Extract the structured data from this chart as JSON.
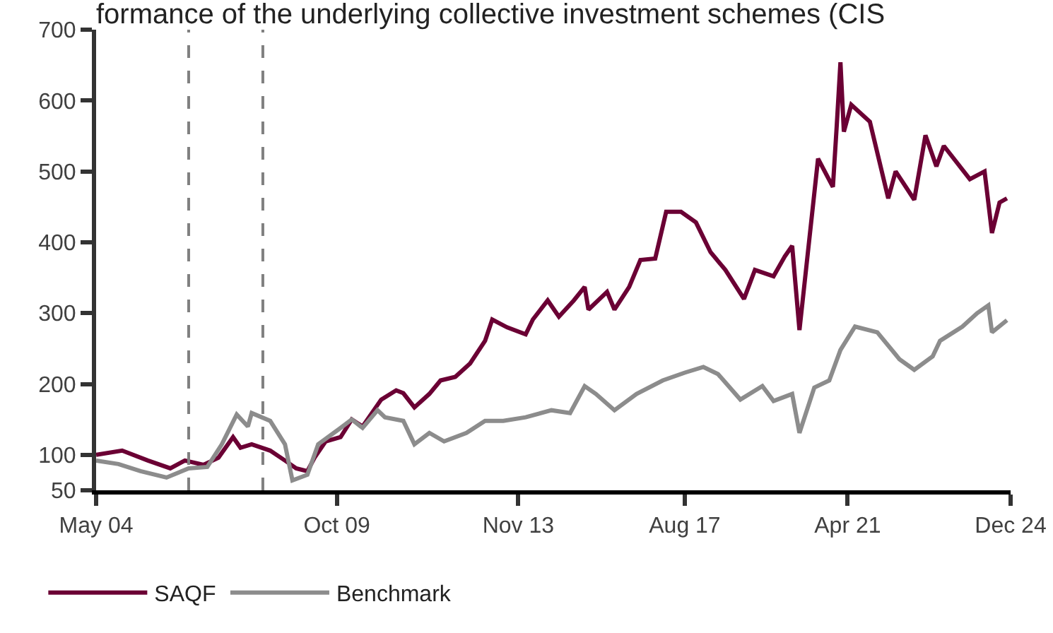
{
  "chart_data": {
    "type": "line",
    "title": "formance of the underlying collective investment schemes (CIS",
    "xlim": [
      "2004-05",
      "2024-12"
    ],
    "xticks": [
      {
        "value": "2004-05",
        "label": "May 04"
      },
      {
        "value": "2009-10",
        "label": "Oct 09"
      },
      {
        "value": "2013-11",
        "label": "Nov 13"
      },
      {
        "value": "2017-08",
        "label": "Aug 17"
      },
      {
        "value": "2021-04",
        "label": "Apr 21"
      },
      {
        "value": "2024-12",
        "label": "Dec 24"
      }
    ],
    "ylim": [
      50,
      700
    ],
    "yticks": [
      50,
      100,
      200,
      300,
      400,
      500,
      600,
      700
    ],
    "grid": false,
    "legend": "bottom",
    "line_style": "solid",
    "marker": "none",
    "ref_lines": [
      {
        "axis": "x",
        "value": "2006-06",
        "color": "#808080",
        "line_style": "dashed"
      },
      {
        "axis": "x",
        "value": "2008-02",
        "color": "#808080",
        "line_style": "dashed"
      }
    ],
    "series": [
      {
        "name": "SAQF",
        "color": "#6b0034",
        "x": [
          "2004-05",
          "2004-12",
          "2005-07",
          "2006-01",
          "2006-05",
          "2006-10",
          "2007-02",
          "2007-06",
          "2007-08",
          "2007-11",
          "2008-04",
          "2008-08",
          "2008-11",
          "2009-02",
          "2009-04",
          "2009-07",
          "2009-11",
          "2010-02",
          "2010-05",
          "2010-10",
          "2011-02",
          "2011-04",
          "2011-07",
          "2011-11",
          "2012-02",
          "2012-06",
          "2012-10",
          "2013-02",
          "2013-04",
          "2013-08",
          "2014-01",
          "2014-03",
          "2014-07",
          "2014-10",
          "2015-02",
          "2015-05",
          "2015-06",
          "2015-11",
          "2016-01",
          "2016-05",
          "2016-08",
          "2016-12",
          "2017-03",
          "2017-07",
          "2017-11",
          "2018-03",
          "2018-07",
          "2018-12",
          "2019-03",
          "2019-08",
          "2019-11",
          "2020-01",
          "2020-03",
          "2020-07",
          "2020-08",
          "2020-12",
          "2021-01",
          "2021-02",
          "2021-03",
          "2021-05",
          "2021-10",
          "2022-03",
          "2022-05",
          "2022-10",
          "2023-01",
          "2023-04",
          "2023-06",
          "2024-01",
          "2024-05",
          "2024-07",
          "2024-09",
          "2024-11"
        ],
        "values": [
          100,
          106,
          92,
          81,
          92,
          86,
          96,
          125,
          110,
          115,
          106,
          92,
          81,
          77,
          96,
          119,
          125,
          150,
          140,
          178,
          191,
          187,
          167,
          186,
          205,
          210,
          229,
          261,
          291,
          280,
          270,
          291,
          318,
          295,
          318,
          337,
          305,
          330,
          305,
          337,
          375,
          377,
          443,
          443,
          428,
          386,
          361,
          320,
          361,
          352,
          380,
          395,
          276,
          469,
          518,
          478,
          563,
          654,
          556,
          594,
          570,
          462,
          500,
          460,
          551,
          507,
          536,
          489,
          500,
          413,
          456,
          462
        ]
      },
      {
        "name": "Benchmark",
        "color": "#8c8c8c",
        "x": [
          "2004-05",
          "2004-11",
          "2005-05",
          "2005-12",
          "2006-06",
          "2006-11",
          "2007-03",
          "2007-07",
          "2007-10",
          "2007-11",
          "2008-04",
          "2008-08",
          "2008-10",
          "2009-02",
          "2009-05",
          "2009-11",
          "2010-02",
          "2010-05",
          "2010-09",
          "2010-11",
          "2011-04",
          "2011-07",
          "2011-11",
          "2012-03",
          "2012-09",
          "2013-02",
          "2013-07",
          "2014-01",
          "2014-08",
          "2015-01",
          "2015-05",
          "2015-08",
          "2016-01",
          "2016-07",
          "2017-02",
          "2017-08",
          "2018-01",
          "2018-05",
          "2018-11",
          "2019-05",
          "2019-08",
          "2020-01",
          "2020-03",
          "2020-07",
          "2020-11",
          "2021-02",
          "2021-06",
          "2021-12",
          "2022-06",
          "2022-10",
          "2023-03",
          "2023-05",
          "2023-11",
          "2024-03",
          "2024-06",
          "2024-07",
          "2024-11"
        ],
        "values": [
          92,
          87,
          77,
          68,
          81,
          83,
          115,
          157,
          140,
          159,
          148,
          115,
          64,
          72,
          115,
          138,
          150,
          138,
          163,
          153,
          148,
          115,
          131,
          119,
          131,
          148,
          148,
          153,
          163,
          159,
          197,
          186,
          163,
          186,
          205,
          216,
          224,
          214,
          178,
          197,
          176,
          186,
          131,
          195,
          205,
          248,
          281,
          273,
          235,
          220,
          239,
          261,
          281,
          300,
          311,
          273,
          290
        ]
      }
    ]
  }
}
